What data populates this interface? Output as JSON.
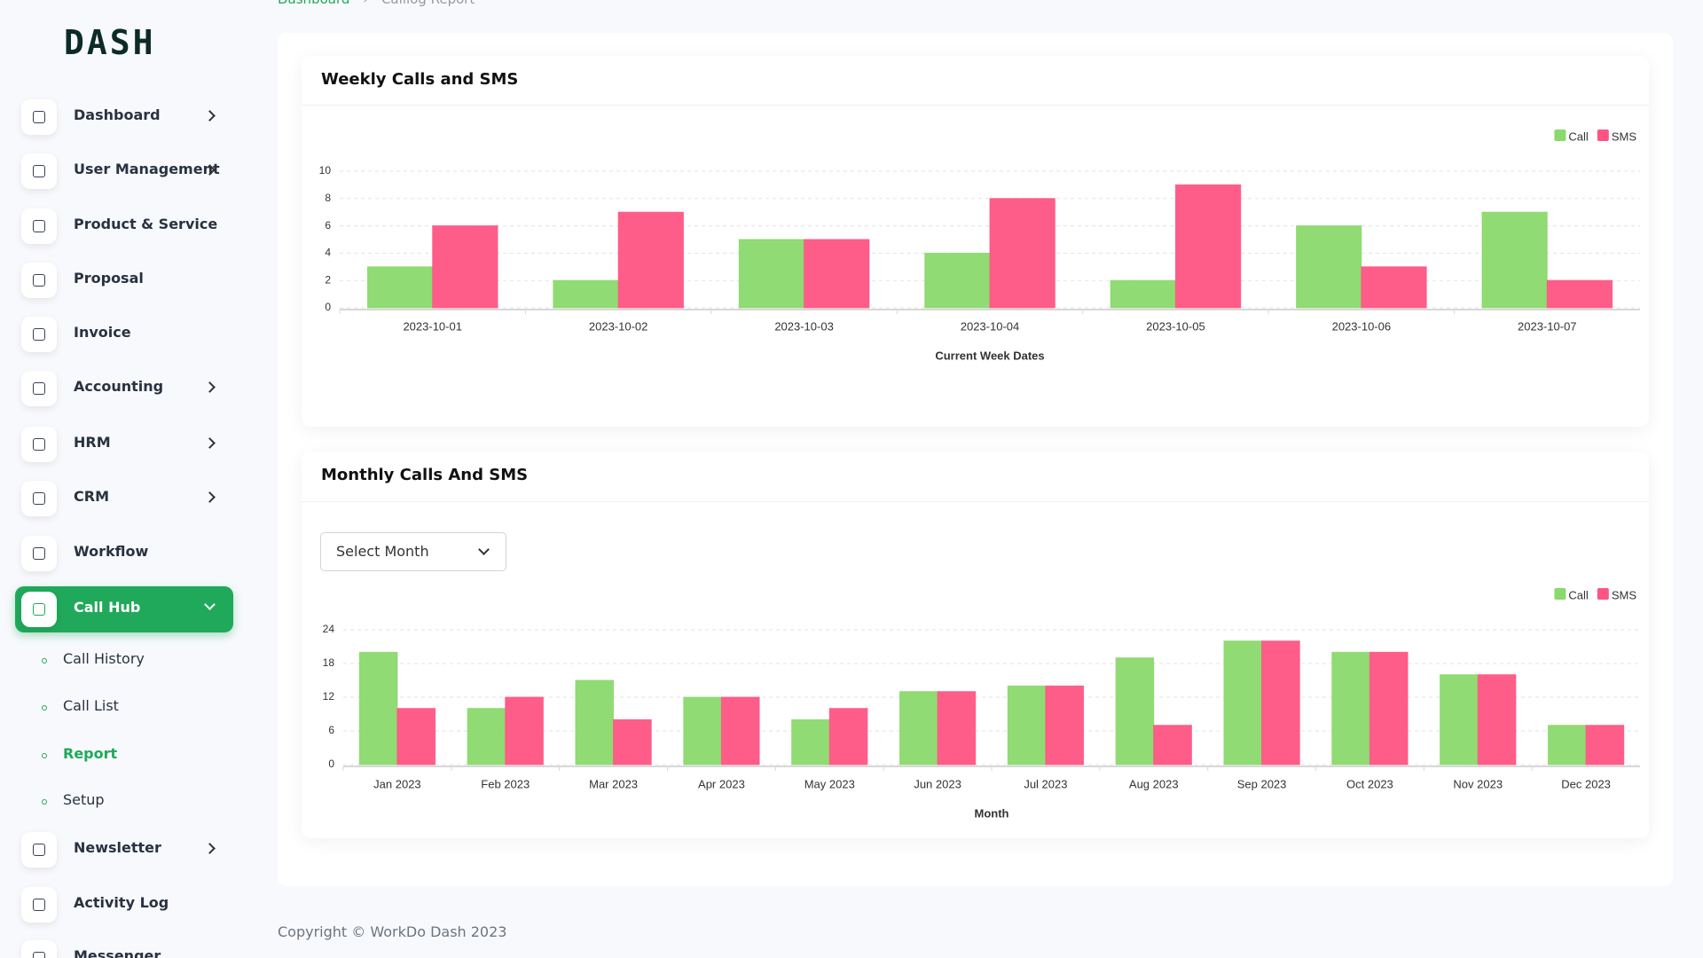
{
  "brand": "DASH",
  "breadcrumb": [
    "Dashboard",
    "Calllog Report"
  ],
  "sidebar": {
    "menu": [
      "Dashboard",
      "User Management",
      "Product & Service",
      "Proposal",
      "Invoice",
      "Accounting",
      "HRM",
      "CRM",
      "Workflow",
      "Call Hub"
    ],
    "submenu": [
      "Call History",
      "Call List",
      "Report",
      "Setup"
    ],
    "menu_after": [
      "Newsletter",
      "Activity Log",
      "Messenger"
    ]
  },
  "select": {
    "placeholder": "Select Month"
  },
  "footer": "Copyright © WorkDo Dash 2023",
  "chart_data": [
    {
      "type": "bar",
      "title": "Weekly Calls and SMS",
      "x_label": "Current Week Dates",
      "categories": [
        "2023-10-01",
        "2023-10-02",
        "2023-10-03",
        "2023-10-04",
        "2023-10-05",
        "2023-10-06",
        "2023-10-07"
      ],
      "series": [
        {
          "name": "Call",
          "color": "#8ad96c",
          "values": [
            3,
            2,
            5,
            4,
            2,
            6,
            7
          ]
        },
        {
          "name": "SMS",
          "color": "#ff5483",
          "values": [
            6,
            7,
            5,
            8,
            9,
            3,
            2
          ]
        }
      ],
      "ylim": [
        0,
        10
      ],
      "yticks": [
        0,
        2,
        4,
        6,
        8,
        10
      ],
      "grid": true,
      "legend": "upper right"
    },
    {
      "type": "bar",
      "title": "Monthly Calls And SMS",
      "x_label": "Month",
      "categories": [
        "Jan 2023",
        "Feb 2023",
        "Mar 2023",
        "Apr 2023",
        "May 2023",
        "Jun 2023",
        "Jul 2023",
        "Aug 2023",
        "Sep 2023",
        "Oct 2023",
        "Nov 2023",
        "Dec 2023"
      ],
      "series": [
        {
          "name": "Call",
          "color": "#8ad96c",
          "values": [
            20,
            10,
            15,
            12,
            8,
            13,
            14,
            19,
            22,
            20,
            16,
            7
          ]
        },
        {
          "name": "SMS",
          "color": "#ff5483",
          "values": [
            10,
            12,
            8,
            12,
            10,
            13,
            14,
            7,
            22,
            20,
            16,
            7
          ]
        }
      ],
      "ylim": [
        0,
        24
      ],
      "yticks": [
        0,
        6,
        12,
        18,
        24
      ],
      "grid": true,
      "legend": "upper right"
    }
  ]
}
